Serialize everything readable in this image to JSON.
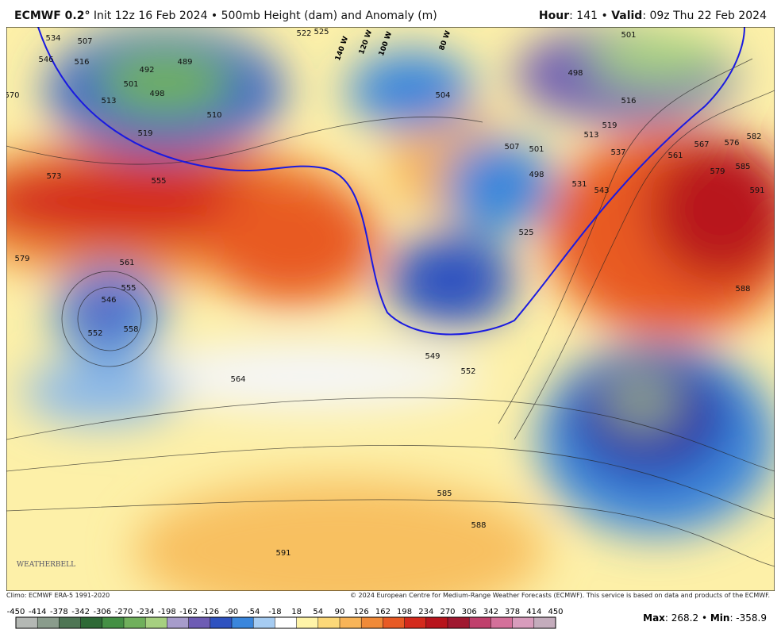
{
  "header": {
    "model": "ECMWF 0.2°",
    "info": "Init 12z 16 Feb 2024 • 500mb Height (dam) and Anomaly (m)",
    "hour_label": "Hour",
    "hour": ": 141 • ",
    "valid_label": "Valid",
    "valid": ": 09z Thu 22 Feb 2024"
  },
  "map": {
    "contour_labels": [
      "534",
      "546",
      "570",
      "573",
      "579",
      "507",
      "516",
      "492",
      "489",
      "501",
      "498",
      "513",
      "519",
      "510",
      "555",
      "561",
      "546",
      "555",
      "552",
      "558",
      "549",
      "552",
      "585",
      "588",
      "591",
      "522",
      "525",
      "504",
      "501",
      "498",
      "507",
      "513",
      "519",
      "516",
      "537",
      "543",
      "561",
      "567",
      "576",
      "582",
      "579",
      "585",
      "591",
      "588",
      "525",
      "531",
      "498",
      "501",
      "564"
    ],
    "longitude_labels": [
      "140 W",
      "120 W",
      "100 W",
      "80 W"
    ],
    "logo": "WEATHERBELL"
  },
  "footer": {
    "climo": "Climo: ECMWF ERA-5 1991-2020",
    "copyright": "© 2024 European Centre for Medium-Range Weather Forecasts (ECMWF). This service is based on data and products of the ECMWF.",
    "max_label": "Max",
    "max": ": 268.2 • ",
    "min_label": "Min",
    "min": ": -358.9"
  },
  "colorbar": {
    "ticks": [
      -450,
      -414,
      -378,
      -342,
      -306,
      -270,
      -234,
      -198,
      -162,
      -126,
      -90,
      -54,
      -18,
      18,
      54,
      90,
      126,
      162,
      198,
      234,
      270,
      306,
      342,
      378,
      414,
      450
    ],
    "colors": [
      "#b4b8b4",
      "#8a9c8c",
      "#4e7654",
      "#2e6a36",
      "#449044",
      "#70b05c",
      "#a6d080",
      "#a79ccb",
      "#6e5cb4",
      "#2e52c0",
      "#3a86dc",
      "#a6ccf2",
      "#ffffff",
      "#fff4a8",
      "#fcd878",
      "#f8b458",
      "#f08a38",
      "#e85a24",
      "#d42a1c",
      "#b8141c",
      "#a01830",
      "#c0406c",
      "#d4709a",
      "#d89cbc",
      "#c4acbc"
    ]
  }
}
